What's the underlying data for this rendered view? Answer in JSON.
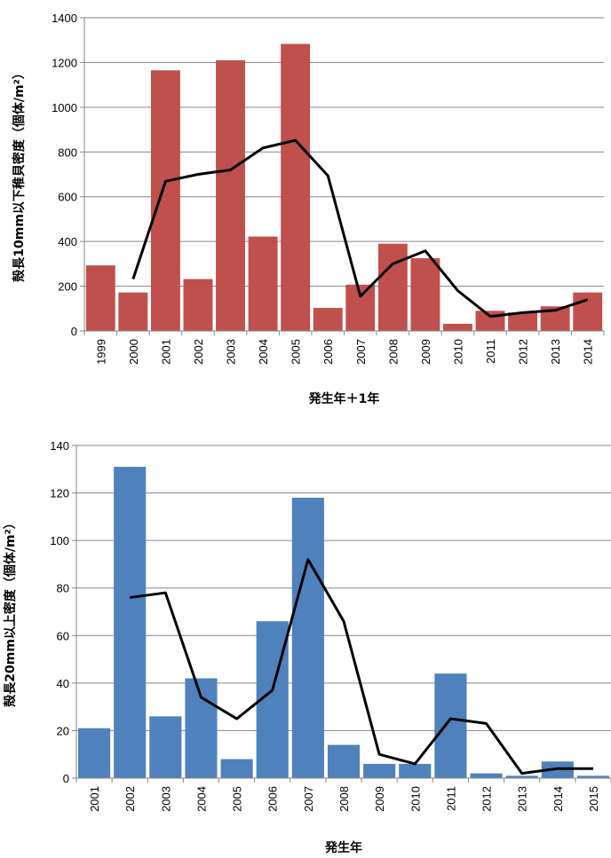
{
  "chart_data": [
    {
      "type": "bar",
      "title": "",
      "xlabel": "発生年＋1年",
      "ylabel": "殻長10mm以下稚貝密度（個体/m²）",
      "ylim": [
        0,
        1400
      ],
      "yticks": [
        0,
        200,
        400,
        600,
        800,
        1000,
        1200,
        1400
      ],
      "grid": true,
      "colors": {
        "bar": "#C0504D",
        "line": "#000000"
      },
      "categories": [
        "1999",
        "2000",
        "2001",
        "2002",
        "2003",
        "2004",
        "2005",
        "2006",
        "2007",
        "2008",
        "2009",
        "2010",
        "2011",
        "2012",
        "2013",
        "2014"
      ],
      "series": [
        {
          "kind": "bar",
          "values": [
            293,
            172,
            1165,
            232,
            1210,
            422,
            1283,
            103,
            207,
            390,
            325,
            32,
            90,
            82,
            110,
            172
          ]
        },
        {
          "kind": "line",
          "values": [
            null,
            232,
            669,
            700,
            720,
            818,
            852,
            694,
            155,
            300,
            358,
            180,
            65,
            82,
            92,
            140
          ]
        }
      ]
    },
    {
      "type": "bar",
      "title": "",
      "xlabel": "発生年",
      "ylabel": "殻長20mm以上密度（個体/m²）",
      "ylim": [
        0,
        140
      ],
      "yticks": [
        0,
        20,
        40,
        60,
        80,
        100,
        120,
        140
      ],
      "grid": true,
      "colors": {
        "bar": "#4F81BD",
        "line": "#000000"
      },
      "categories": [
        "2001",
        "2002",
        "2003",
        "2004",
        "2005",
        "2006",
        "2007",
        "2008",
        "2009",
        "2010",
        "2011",
        "2012",
        "2013",
        "2014",
        "2015"
      ],
      "series": [
        {
          "kind": "bar",
          "values": [
            21,
            131,
            26,
            42,
            8,
            66,
            118,
            14,
            6,
            6,
            44,
            2,
            1,
            7,
            1
          ]
        },
        {
          "kind": "line",
          "values": [
            null,
            76,
            78,
            34,
            25,
            37,
            92,
            66,
            10,
            6,
            25,
            23,
            2,
            4,
            4
          ]
        }
      ]
    }
  ]
}
